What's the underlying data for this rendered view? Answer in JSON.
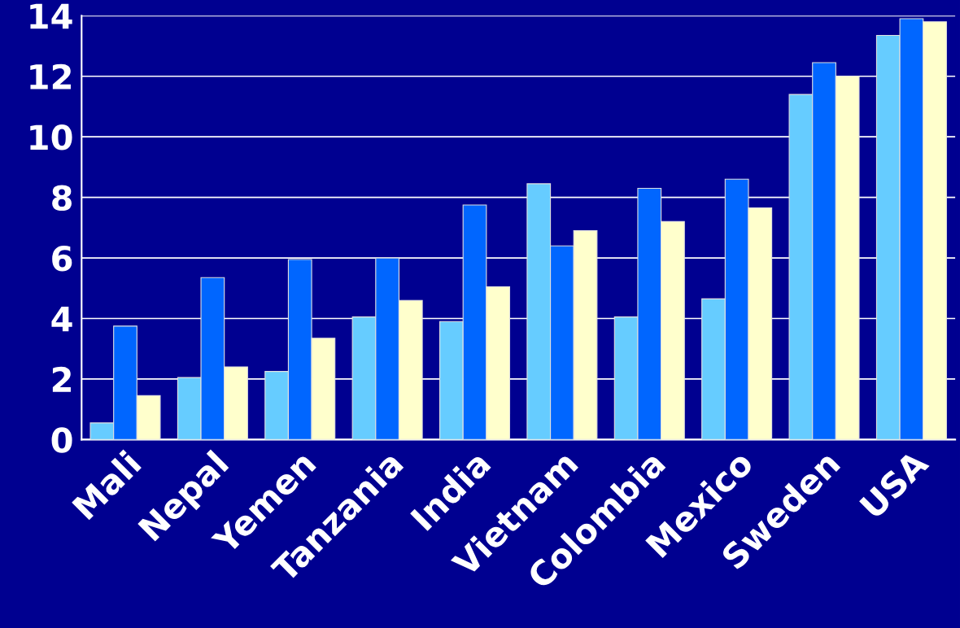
{
  "chart_data": {
    "type": "bar",
    "categories": [
      "Mali",
      "Nepal",
      "Yemen",
      "Tanzania",
      "India",
      "Vietnam",
      "Colombia",
      "Mexico",
      "Sweden",
      "USA"
    ],
    "series": [
      {
        "color": "#66ccff",
        "values": [
          0.55,
          2.05,
          2.25,
          4.05,
          3.9,
          8.45,
          4.05,
          4.65,
          11.4,
          13.35
        ]
      },
      {
        "color": "#0066ff",
        "values": [
          3.75,
          5.35,
          5.95,
          6.0,
          7.75,
          6.4,
          8.3,
          8.6,
          12.45,
          13.9
        ]
      },
      {
        "color": "#ffffcc",
        "values": [
          1.45,
          2.4,
          3.35,
          4.6,
          5.05,
          6.9,
          7.2,
          7.65,
          12.0,
          13.8
        ]
      }
    ],
    "ylim": [
      0,
      14
    ],
    "yticks": [
      0,
      2,
      4,
      6,
      8,
      10,
      12,
      14
    ],
    "grid": "y",
    "legend": false
  }
}
